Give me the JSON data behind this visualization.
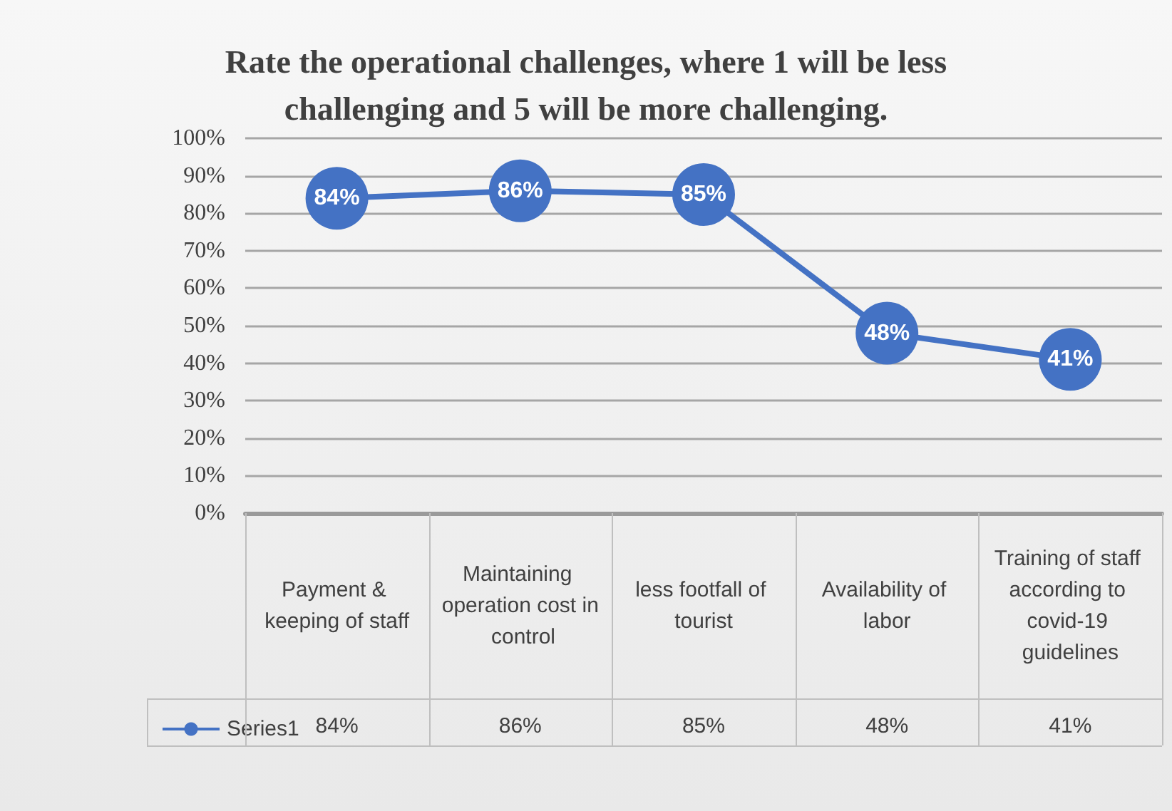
{
  "chart_data": {
    "type": "line",
    "title": "Rate the operational challenges, where 1 will be less\nchallenging and 5 will be more challenging.",
    "categories": [
      "Payment & keeping of staff",
      "Maintaining operation cost in control",
      "less footfall of tourist",
      "Availability of labor",
      "Training of staff according to covid-19 guidelines"
    ],
    "series": [
      {
        "name": "Series1",
        "color": "#4472c4",
        "values": [
          84,
          86,
          85,
          48,
          41
        ],
        "value_labels": [
          "84%",
          "86%",
          "85%",
          "48%",
          "41%"
        ]
      }
    ],
    "ylim": [
      0,
      100
    ],
    "yticks": [
      {
        "value": 0,
        "label": "0%"
      },
      {
        "value": 10,
        "label": "10%"
      },
      {
        "value": 20,
        "label": "20%"
      },
      {
        "value": 30,
        "label": "30%"
      },
      {
        "value": 40,
        "label": "40%"
      },
      {
        "value": 50,
        "label": "50%"
      },
      {
        "value": 60,
        "label": "60%"
      },
      {
        "value": 70,
        "label": "70%"
      },
      {
        "value": 80,
        "label": "80%"
      },
      {
        "value": 90,
        "label": "90%"
      },
      {
        "value": 100,
        "label": "100%"
      }
    ],
    "grid": "y",
    "legend": "bottom left",
    "marker": "circle",
    "line_style": "solid"
  }
}
